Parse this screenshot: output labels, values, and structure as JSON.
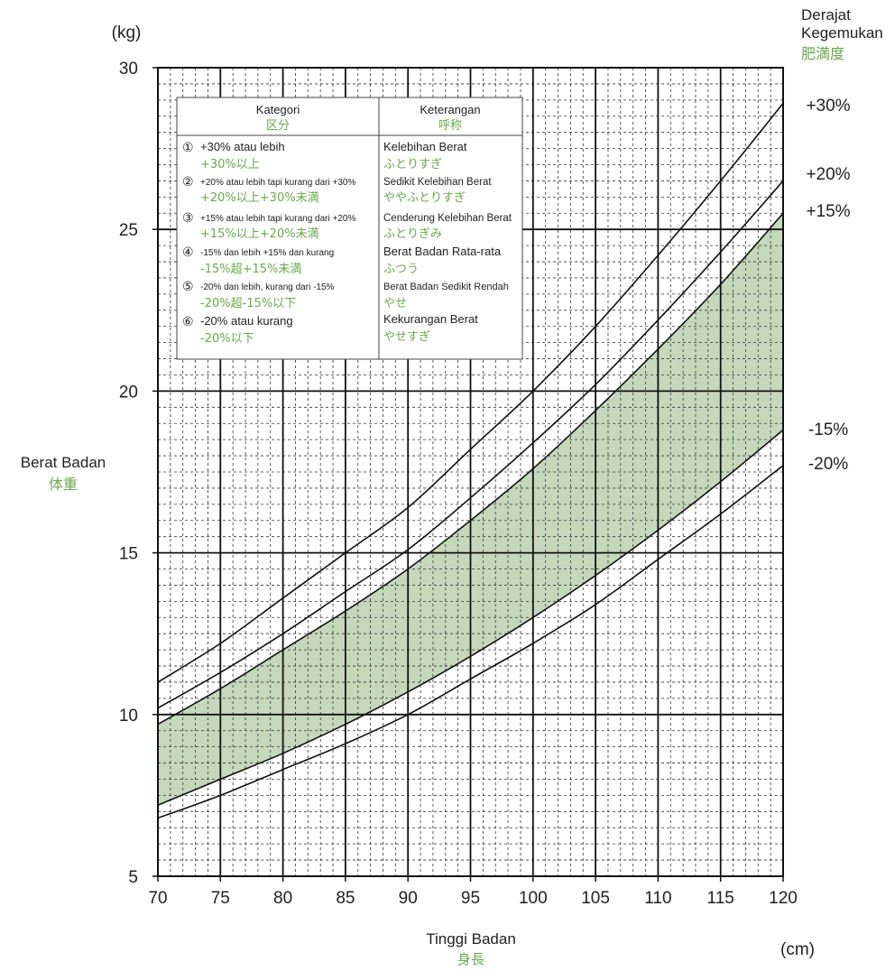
{
  "chart_data": {
    "type": "line",
    "x_unit": "(cm)",
    "y_unit": "(kg)",
    "xlabel": "Tinggi Badan",
    "xlabel_jp": "身長",
    "ylabel": "Berat Badan",
    "ylabel_jp": "体重",
    "right_title": [
      "Derajat",
      "Kegemukan"
    ],
    "right_title_jp": "肥満度",
    "xlim": [
      70,
      120
    ],
    "ylim": [
      5,
      30
    ],
    "x_ticks": [
      "70",
      "75",
      "80",
      "85",
      "90",
      "95",
      "100",
      "105",
      "110",
      "115",
      "120"
    ],
    "y_ticks": [
      "5",
      "10",
      "15",
      "20",
      "25",
      "30"
    ],
    "x": [
      70,
      75,
      80,
      85,
      90,
      95,
      100,
      105,
      110,
      115,
      120
    ],
    "series": [
      {
        "name": "+30%",
        "values": [
          11.0,
          12.2,
          13.6,
          15.0,
          16.4,
          18.2,
          20.0,
          22.0,
          24.2,
          26.5,
          28.9
        ]
      },
      {
        "name": "+20%",
        "values": [
          10.2,
          11.3,
          12.5,
          13.8,
          15.1,
          16.7,
          18.4,
          20.2,
          22.2,
          24.3,
          26.5
        ]
      },
      {
        "name": "+15%",
        "values": [
          9.7,
          10.8,
          12.0,
          13.2,
          14.5,
          16.0,
          17.6,
          19.4,
          21.3,
          23.3,
          25.5
        ]
      },
      {
        "name": "-15%",
        "values": [
          7.2,
          8.0,
          8.8,
          9.7,
          10.7,
          11.8,
          13.0,
          14.3,
          15.7,
          17.2,
          18.8
        ]
      },
      {
        "name": "-20%",
        "values": [
          6.8,
          7.5,
          8.3,
          9.1,
          10.0,
          11.1,
          12.2,
          13.4,
          14.8,
          16.2,
          17.7
        ]
      }
    ],
    "shaded_band": {
      "between": [
        "+15%",
        "-15%"
      ],
      "color": "#c6d8bc"
    },
    "grid": true,
    "legend_table": {
      "headers": [
        {
          "label": "Kategori",
          "label_jp": "区分"
        },
        {
          "label": "Keterangan",
          "label_jp": "呼称"
        }
      ],
      "rows": [
        {
          "marker": "①",
          "category": "+30% atau lebih",
          "category_jp": "+30%以上",
          "name": "Kelebihan Berat",
          "name_jp": "ふとりすぎ"
        },
        {
          "marker": "②",
          "category": "+20% atau lebih tapi kurang dari +30%",
          "category_jp": "+20%以上+30%未満",
          "name": "Sedikit Kelebihan Berat",
          "name_jp": "ややふとりすぎ"
        },
        {
          "marker": "③",
          "category": "+15% atau lebih tapi kurang dari +20%",
          "category_jp": "+15%以上+20%未満",
          "name": "Cenderung Kelebihan Berat",
          "name_jp": "ふとりぎみ"
        },
        {
          "marker": "④",
          "category": "-15% dan lebih +15% dan kurang",
          "category_jp": "-15%超+15%未満",
          "name": "Berat Badan Rata-rata",
          "name_jp": "ふつう"
        },
        {
          "marker": "⑤",
          "category": "-20% dan lebih, kurang dari -15%",
          "category_jp": "-20%超-15%以下",
          "name": "Berat Badan Sedikit Rendah",
          "name_jp": "やせ"
        },
        {
          "marker": "⑥",
          "category": "-20% atau kurang",
          "category_jp": "-20%以下",
          "name": "Kekurangan Berat",
          "name_jp": "やせすぎ"
        }
      ]
    }
  },
  "colors": {
    "band": "#c6d8bc",
    "japanese_text": "#6aa84f",
    "line": "#111111"
  }
}
